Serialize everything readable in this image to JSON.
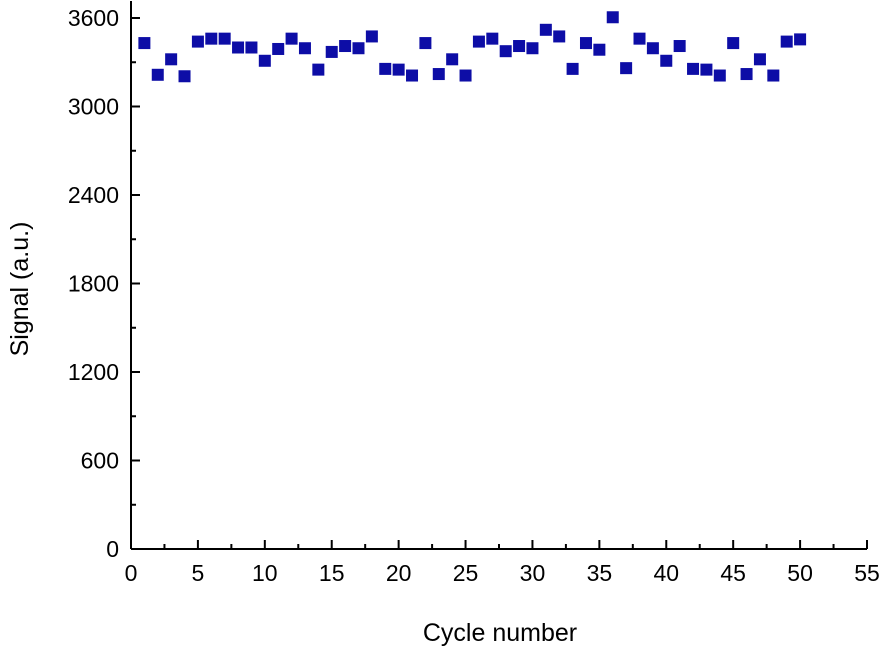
{
  "chart_data": {
    "type": "scatter",
    "title": "",
    "xlabel": "Cycle number",
    "ylabel": "Signal (a.u.)",
    "xlim": [
      0,
      55
    ],
    "ylim": [
      0,
      3600
    ],
    "x_ticks": [
      0,
      5,
      10,
      15,
      20,
      25,
      30,
      35,
      40,
      45,
      50,
      55
    ],
    "y_ticks": [
      0,
      600,
      1200,
      1800,
      2400,
      3000,
      3600
    ],
    "grid": false,
    "marker": "square",
    "color": "#0d0da6",
    "series": [
      {
        "x": [
          1,
          2,
          3,
          4,
          5,
          6,
          7,
          8,
          9,
          10,
          11,
          12,
          13,
          14,
          15,
          16,
          17,
          18,
          19,
          20,
          21,
          22,
          23,
          24,
          25,
          26,
          27,
          28,
          29,
          30,
          31,
          32,
          33,
          34,
          35,
          36,
          37,
          38,
          39,
          40,
          41,
          42,
          43,
          44,
          45,
          46,
          47,
          48,
          49,
          50
        ],
        "y": [
          3430,
          3215,
          3320,
          3205,
          3440,
          3460,
          3460,
          3400,
          3400,
          3310,
          3390,
          3460,
          3395,
          3250,
          3370,
          3410,
          3395,
          3475,
          3255,
          3250,
          3210,
          3430,
          3220,
          3320,
          3210,
          3440,
          3460,
          3375,
          3410,
          3395,
          3520,
          3475,
          3255,
          3430,
          3385,
          3605,
          3260,
          3460,
          3395,
          3310,
          3410,
          3255,
          3250,
          3210,
          3430,
          3220,
          3320,
          3210,
          3440,
          3455
        ]
      }
    ]
  }
}
